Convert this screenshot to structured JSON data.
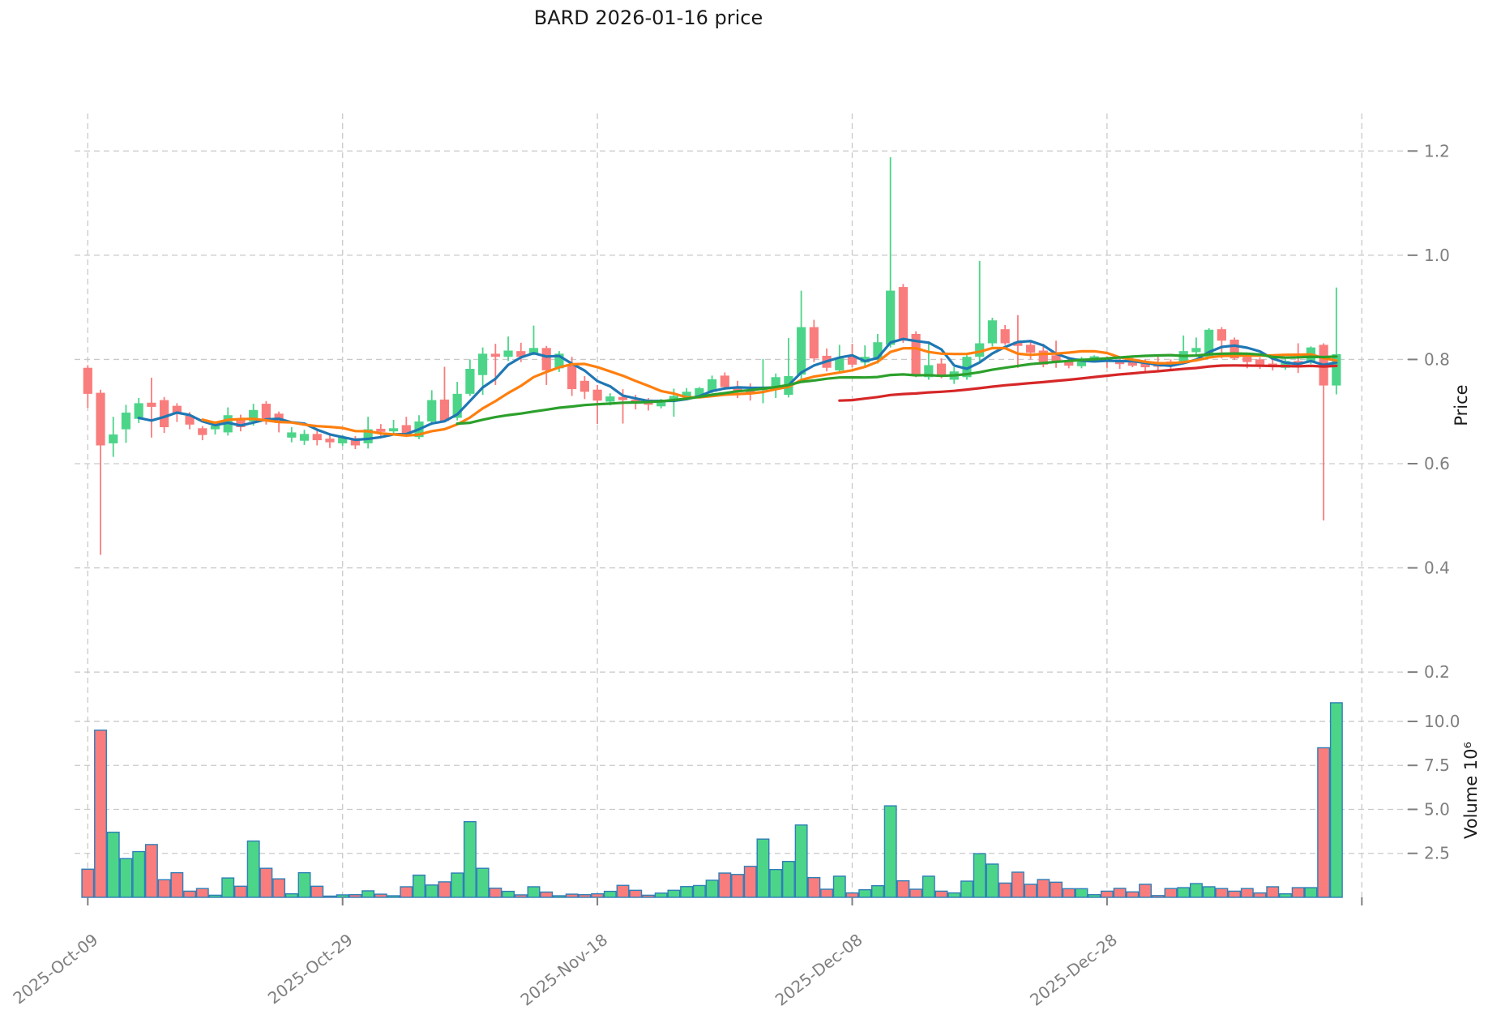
{
  "title": "BARD  2026-01-16  price",
  "colors": {
    "up": "#4cd589",
    "down": "#f97d7d",
    "volume_edge": "#2e7eb8",
    "grid": "#c9c9c9",
    "tick_text": "#7f7f7f",
    "title_text": "#1a1a1a",
    "ma_blue": "#1f77b4",
    "ma_orange": "#ff7f0e",
    "ma_green": "#2ca02c",
    "ma_red": "#d62728"
  },
  "chart_data": {
    "type": "candlestick",
    "title": "BARD  2026-01-16  price",
    "legend_position": "none",
    "grid": "dashed-both-axes",
    "price_axis": {
      "label": "Price",
      "side": "right",
      "min": 0.152,
      "max": 1.272,
      "tick_values": [
        1.2,
        1.0,
        0.8,
        0.6,
        0.4,
        0.2
      ],
      "tick_labels": [
        "1.2",
        "1.0",
        "0.8",
        "0.6",
        "0.4",
        "0.2"
      ]
    },
    "volume_axis": {
      "label": "Volume  10⁶",
      "side": "right",
      "unit": "millions",
      "min": 0,
      "max": 11.38,
      "tick_values": [
        10.0,
        7.5,
        5.0,
        2.5
      ],
      "tick_labels": [
        "10.0",
        "7.5",
        "5.0",
        "2.5"
      ]
    },
    "x_axis": {
      "tick_labels": [
        "2025-Oct-09",
        "2025-Oct-29",
        "2025-Nov-18",
        "2025-Dec-08",
        "2025-Dec-28"
      ],
      "tick_indices": [
        0,
        20,
        40,
        60,
        80
      ],
      "gridline_indices": [
        0,
        20,
        40,
        60,
        80,
        100
      ],
      "label_rotation_deg": -38
    },
    "moving_averages": [
      {
        "name": "MA5",
        "window": 5,
        "color": "#1f77b4"
      },
      {
        "name": "MA10",
        "window": 10,
        "color": "#ff7f0e"
      },
      {
        "name": "MA30",
        "window": 30,
        "color": "#2ca02c"
      },
      {
        "name": "MA60",
        "window": 60,
        "color": "#d62728"
      }
    ],
    "columns": [
      "date",
      "open",
      "high",
      "low",
      "close",
      "volume_millions"
    ],
    "candles": [
      [
        "2025-10-09",
        0.784,
        0.789,
        0.707,
        0.734,
        1.6
      ],
      [
        "2025-10-10",
        0.736,
        0.742,
        0.425,
        0.635,
        9.5
      ],
      [
        "2025-10-11",
        0.639,
        0.69,
        0.613,
        0.656,
        3.7
      ],
      [
        "2025-10-12",
        0.666,
        0.713,
        0.64,
        0.698,
        2.2
      ],
      [
        "2025-10-13",
        0.686,
        0.726,
        0.678,
        0.716,
        2.6
      ],
      [
        "2025-10-14",
        0.717,
        0.765,
        0.65,
        0.709,
        3.0
      ],
      [
        "2025-10-15",
        0.722,
        0.728,
        0.659,
        0.67,
        1.0
      ],
      [
        "2025-10-16",
        0.711,
        0.716,
        0.68,
        0.697,
        1.4
      ],
      [
        "2025-10-17",
        0.692,
        0.699,
        0.666,
        0.675,
        0.35
      ],
      [
        "2025-10-18",
        0.668,
        0.672,
        0.645,
        0.655,
        0.5
      ],
      [
        "2025-10-19",
        0.666,
        0.68,
        0.656,
        0.673,
        0.12
      ],
      [
        "2025-10-20",
        0.66,
        0.708,
        0.654,
        0.693,
        1.1
      ],
      [
        "2025-10-21",
        0.687,
        0.694,
        0.662,
        0.67,
        0.63
      ],
      [
        "2025-10-22",
        0.681,
        0.715,
        0.673,
        0.703,
        3.2
      ],
      [
        "2025-10-23",
        0.715,
        0.72,
        0.675,
        0.686,
        1.65
      ],
      [
        "2025-10-24",
        0.696,
        0.7,
        0.66,
        0.678,
        1.05
      ],
      [
        "2025-10-25",
        0.65,
        0.67,
        0.641,
        0.66,
        0.2
      ],
      [
        "2025-10-26",
        0.644,
        0.665,
        0.636,
        0.657,
        1.4
      ],
      [
        "2025-10-27",
        0.657,
        0.663,
        0.635,
        0.645,
        0.63
      ],
      [
        "2025-10-28",
        0.648,
        0.654,
        0.63,
        0.641,
        0.07
      ],
      [
        "2025-10-29",
        0.639,
        0.655,
        0.634,
        0.651,
        0.14
      ],
      [
        "2025-10-30",
        0.649,
        0.653,
        0.628,
        0.635,
        0.15
      ],
      [
        "2025-10-31",
        0.639,
        0.69,
        0.629,
        0.666,
        0.37
      ],
      [
        "2025-11-01",
        0.667,
        0.676,
        0.652,
        0.661,
        0.18
      ],
      [
        "2025-11-02",
        0.662,
        0.684,
        0.657,
        0.668,
        0.09
      ],
      [
        "2025-11-03",
        0.674,
        0.69,
        0.651,
        0.654,
        0.6
      ],
      [
        "2025-11-04",
        0.651,
        0.693,
        0.647,
        0.681,
        1.26
      ],
      [
        "2025-11-05",
        0.681,
        0.741,
        0.674,
        0.722,
        0.7
      ],
      [
        "2025-11-06",
        0.723,
        0.786,
        0.68,
        0.682,
        0.88
      ],
      [
        "2025-11-07",
        0.688,
        0.757,
        0.683,
        0.734,
        1.38
      ],
      [
        "2025-11-08",
        0.734,
        0.8,
        0.73,
        0.782,
        4.3
      ],
      [
        "2025-11-09",
        0.77,
        0.823,
        0.732,
        0.811,
        1.65
      ],
      [
        "2025-11-10",
        0.811,
        0.83,
        0.751,
        0.805,
        0.52
      ],
      [
        "2025-11-11",
        0.805,
        0.844,
        0.797,
        0.817,
        0.34
      ],
      [
        "2025-11-12",
        0.816,
        0.832,
        0.795,
        0.805,
        0.14
      ],
      [
        "2025-11-13",
        0.811,
        0.865,
        0.808,
        0.822,
        0.6
      ],
      [
        "2025-11-14",
        0.822,
        0.826,
        0.751,
        0.779,
        0.3
      ],
      [
        "2025-11-15",
        0.783,
        0.816,
        0.776,
        0.811,
        0.09
      ],
      [
        "2025-11-16",
        0.79,
        0.805,
        0.73,
        0.743,
        0.18
      ],
      [
        "2025-11-17",
        0.759,
        0.768,
        0.724,
        0.738,
        0.15
      ],
      [
        "2025-11-18",
        0.742,
        0.751,
        0.676,
        0.721,
        0.2
      ],
      [
        "2025-11-19",
        0.719,
        0.735,
        0.712,
        0.729,
        0.34
      ],
      [
        "2025-11-20",
        0.728,
        0.743,
        0.677,
        0.722,
        0.68
      ],
      [
        "2025-11-21",
        0.723,
        0.732,
        0.704,
        0.716,
        0.4
      ],
      [
        "2025-11-22",
        0.723,
        0.726,
        0.702,
        0.713,
        0.12
      ],
      [
        "2025-11-23",
        0.71,
        0.724,
        0.706,
        0.722,
        0.24
      ],
      [
        "2025-11-24",
        0.722,
        0.744,
        0.69,
        0.73,
        0.4
      ],
      [
        "2025-11-25",
        0.729,
        0.745,
        0.723,
        0.738,
        0.61
      ],
      [
        "2025-11-26",
        0.729,
        0.747,
        0.726,
        0.745,
        0.67
      ],
      [
        "2025-11-27",
        0.738,
        0.769,
        0.735,
        0.762,
        0.97
      ],
      [
        "2025-11-28",
        0.769,
        0.775,
        0.742,
        0.747,
        1.38
      ],
      [
        "2025-11-29",
        0.745,
        0.759,
        0.726,
        0.74,
        1.3
      ],
      [
        "2025-11-30",
        0.742,
        0.754,
        0.721,
        0.734,
        1.76
      ],
      [
        "2025-12-01",
        0.742,
        0.801,
        0.716,
        0.744,
        3.31
      ],
      [
        "2025-12-02",
        0.748,
        0.773,
        0.726,
        0.766,
        1.58
      ],
      [
        "2025-12-03",
        0.732,
        0.841,
        0.727,
        0.768,
        2.04
      ],
      [
        "2025-12-04",
        0.771,
        0.932,
        0.761,
        0.862,
        4.11
      ],
      [
        "2025-12-05",
        0.862,
        0.876,
        0.795,
        0.802,
        1.12
      ],
      [
        "2025-12-06",
        0.807,
        0.821,
        0.777,
        0.784,
        0.46
      ],
      [
        "2025-12-07",
        0.779,
        0.828,
        0.773,
        0.802,
        1.2
      ],
      [
        "2025-12-08",
        0.807,
        0.83,
        0.785,
        0.79,
        0.25
      ],
      [
        "2025-12-09",
        0.794,
        0.827,
        0.787,
        0.805,
        0.43
      ],
      [
        "2025-12-10",
        0.799,
        0.849,
        0.792,
        0.833,
        0.66
      ],
      [
        "2025-12-11",
        0.828,
        1.188,
        0.823,
        0.932,
        5.2
      ],
      [
        "2025-12-12",
        0.939,
        0.945,
        0.832,
        0.836,
        0.94
      ],
      [
        "2025-12-13",
        0.849,
        0.854,
        0.766,
        0.771,
        0.46
      ],
      [
        "2025-12-14",
        0.766,
        0.835,
        0.761,
        0.789,
        1.2
      ],
      [
        "2025-12-15",
        0.792,
        0.802,
        0.764,
        0.769,
        0.35
      ],
      [
        "2025-12-16",
        0.761,
        0.785,
        0.753,
        0.777,
        0.25
      ],
      [
        "2025-12-17",
        0.766,
        0.808,
        0.761,
        0.805,
        0.92
      ],
      [
        "2025-12-18",
        0.805,
        0.989,
        0.797,
        0.831,
        2.48
      ],
      [
        "2025-12-19",
        0.831,
        0.88,
        0.825,
        0.875,
        1.89
      ],
      [
        "2025-12-20",
        0.858,
        0.866,
        0.828,
        0.831,
        0.81
      ],
      [
        "2025-12-21",
        0.834,
        0.885,
        0.784,
        0.826,
        1.43
      ],
      [
        "2025-12-22",
        0.828,
        0.836,
        0.8,
        0.813,
        0.74
      ],
      [
        "2025-12-23",
        0.817,
        0.83,
        0.785,
        0.79,
        1.01
      ],
      [
        "2025-12-24",
        0.808,
        0.836,
        0.784,
        0.795,
        0.86
      ],
      [
        "2025-12-25",
        0.796,
        0.805,
        0.783,
        0.788,
        0.49
      ],
      [
        "2025-12-26",
        0.787,
        0.805,
        0.783,
        0.802,
        0.49
      ],
      [
        "2025-12-27",
        0.799,
        0.808,
        0.795,
        0.806,
        0.15
      ],
      [
        "2025-12-28",
        0.802,
        0.806,
        0.784,
        0.797,
        0.35
      ],
      [
        "2025-12-29",
        0.798,
        0.801,
        0.782,
        0.791,
        0.51
      ],
      [
        "2025-12-30",
        0.797,
        0.803,
        0.785,
        0.788,
        0.31
      ],
      [
        "2025-12-31",
        0.796,
        0.8,
        0.777,
        0.785,
        0.74
      ],
      [
        "2026-01-01",
        0.791,
        0.806,
        0.778,
        0.786,
        0.1
      ],
      [
        "2026-01-02",
        0.796,
        0.8,
        0.779,
        0.789,
        0.5
      ],
      [
        "2026-01-03",
        0.796,
        0.846,
        0.792,
        0.816,
        0.55
      ],
      [
        "2026-01-04",
        0.814,
        0.842,
        0.805,
        0.822,
        0.78
      ],
      [
        "2026-01-05",
        0.805,
        0.86,
        0.803,
        0.857,
        0.6
      ],
      [
        "2026-01-06",
        0.858,
        0.862,
        0.802,
        0.836,
        0.5
      ],
      [
        "2026-01-07",
        0.838,
        0.842,
        0.799,
        0.802,
        0.35
      ],
      [
        "2026-01-08",
        0.805,
        0.81,
        0.783,
        0.795,
        0.5
      ],
      [
        "2026-01-09",
        0.8,
        0.804,
        0.782,
        0.787,
        0.25
      ],
      [
        "2026-01-10",
        0.792,
        0.807,
        0.779,
        0.788,
        0.6
      ],
      [
        "2026-01-11",
        0.784,
        0.8,
        0.78,
        0.797,
        0.2
      ],
      [
        "2026-01-12",
        0.797,
        0.831,
        0.774,
        0.79,
        0.55
      ],
      [
        "2026-01-13",
        0.795,
        0.825,
        0.791,
        0.823,
        0.55
      ],
      [
        "2026-01-14",
        0.828,
        0.831,
        0.491,
        0.75,
        8.5
      ],
      [
        "2026-01-15",
        0.75,
        0.938,
        0.733,
        0.81,
        11.06
      ]
    ]
  }
}
